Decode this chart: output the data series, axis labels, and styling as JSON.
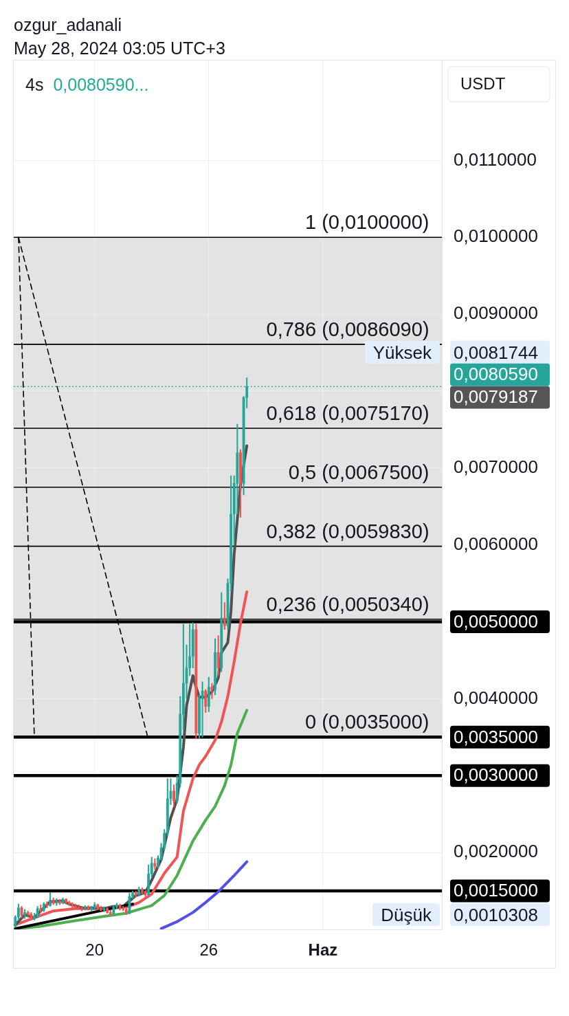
{
  "chart_data": {
    "type": "candlestick",
    "title": "4s",
    "subtitle": "0,0080590...",
    "ylabel": "USDT",
    "x": [
      "2024-05-15T20:00",
      "2024-05-16T00:00",
      "2024-05-16T04:00",
      "2024-05-16T08:00",
      "2024-05-16T12:00",
      "2024-05-16T16:00",
      "2024-05-16T20:00",
      "2024-05-17T00:00",
      "2024-05-17T04:00",
      "2024-05-17T08:00",
      "2024-05-17T12:00",
      "2024-05-17T16:00",
      "2024-05-17T20:00",
      "2024-05-18T00:00",
      "2024-05-18T04:00",
      "2024-05-18T08:00",
      "2024-05-18T12:00",
      "2024-05-18T16:00",
      "2024-05-18T20:00",
      "2024-05-19T00:00",
      "2024-05-19T04:00",
      "2024-05-19T08:00",
      "2024-05-19T12:00",
      "2024-05-19T16:00",
      "2024-05-19T20:00",
      "2024-05-20T00:00",
      "2024-05-20T04:00",
      "2024-05-20T08:00",
      "2024-05-20T12:00",
      "2024-05-20T16:00",
      "2024-05-20T20:00",
      "2024-05-21T00:00",
      "2024-05-21T04:00",
      "2024-05-21T08:00",
      "2024-05-21T12:00",
      "2024-05-21T16:00",
      "2024-05-21T20:00",
      "2024-05-22T00:00",
      "2024-05-22T04:00",
      "2024-05-22T08:00",
      "2024-05-22T12:00",
      "2024-05-22T16:00",
      "2024-05-22T20:00",
      "2024-05-23T00:00",
      "2024-05-23T04:00",
      "2024-05-23T08:00",
      "2024-05-23T12:00",
      "2024-05-23T16:00",
      "2024-05-23T20:00",
      "2024-05-24T00:00",
      "2024-05-24T04:00",
      "2024-05-24T08:00",
      "2024-05-24T12:00",
      "2024-05-24T16:00",
      "2024-05-24T20:00",
      "2024-05-25T00:00",
      "2024-05-25T04:00",
      "2024-05-25T08:00",
      "2024-05-25T12:00",
      "2024-05-25T16:00",
      "2024-05-25T20:00",
      "2024-05-26T00:00",
      "2024-05-26T04:00",
      "2024-05-26T08:00",
      "2024-05-26T12:00",
      "2024-05-26T16:00",
      "2024-05-26T20:00",
      "2024-05-27T00:00",
      "2024-05-27T04:00",
      "2024-05-27T08:00",
      "2024-05-27T12:00",
      "2024-05-27T16:00",
      "2024-05-27T20:00",
      "2024-05-28T00:00"
    ],
    "ohlc": [
      [
        0.00104,
        0.00118,
        0.0010308,
        0.00116
      ],
      [
        0.00116,
        0.00133,
        0.00112,
        0.00128
      ],
      [
        0.00128,
        0.0013,
        0.00115,
        0.00118
      ],
      [
        0.00118,
        0.00126,
        0.00114,
        0.00122
      ],
      [
        0.00122,
        0.00124,
        0.00116,
        0.0012
      ],
      [
        0.0012,
        0.00122,
        0.00112,
        0.00114
      ],
      [
        0.00114,
        0.00121,
        0.00112,
        0.00117
      ],
      [
        0.00117,
        0.0013,
        0.00115,
        0.00127
      ],
      [
        0.00127,
        0.00132,
        0.00122,
        0.00125
      ],
      [
        0.00125,
        0.00135,
        0.00123,
        0.00133
      ],
      [
        0.00133,
        0.00136,
        0.00128,
        0.00131
      ],
      [
        0.00131,
        0.00148,
        0.0013,
        0.00138
      ],
      [
        0.00138,
        0.00141,
        0.00132,
        0.00134
      ],
      [
        0.00134,
        0.0014,
        0.00131,
        0.00137
      ],
      [
        0.00137,
        0.00139,
        0.00132,
        0.00134
      ],
      [
        0.00134,
        0.00141,
        0.00133,
        0.00139
      ],
      [
        0.00139,
        0.0014,
        0.00133,
        0.00135
      ],
      [
        0.00135,
        0.00137,
        0.00131,
        0.00133
      ],
      [
        0.00133,
        0.00135,
        0.00128,
        0.0013
      ],
      [
        0.0013,
        0.00133,
        0.00127,
        0.00129
      ],
      [
        0.00129,
        0.00132,
        0.00126,
        0.00128
      ],
      [
        0.00128,
        0.0013,
        0.00124,
        0.00127
      ],
      [
        0.00127,
        0.00131,
        0.00125,
        0.00129
      ],
      [
        0.00129,
        0.00131,
        0.00125,
        0.00126
      ],
      [
        0.00126,
        0.0013,
        0.00124,
        0.00128
      ],
      [
        0.00128,
        0.00135,
        0.00126,
        0.00132
      ],
      [
        0.00132,
        0.00133,
        0.00126,
        0.00127
      ],
      [
        0.00127,
        0.0013,
        0.00124,
        0.00125
      ],
      [
        0.00125,
        0.00129,
        0.00123,
        0.00127
      ],
      [
        0.00127,
        0.00128,
        0.00121,
        0.00122
      ],
      [
        0.00122,
        0.00125,
        0.00118,
        0.0012
      ],
      [
        0.0012,
        0.00131,
        0.00119,
        0.00129
      ],
      [
        0.00129,
        0.00134,
        0.00127,
        0.00131
      ],
      [
        0.00131,
        0.00133,
        0.00125,
        0.00127
      ],
      [
        0.00127,
        0.0013,
        0.00124,
        0.00126
      ],
      [
        0.00126,
        0.00128,
        0.00119,
        0.00121
      ],
      [
        0.00121,
        0.00147,
        0.0012,
        0.00143
      ],
      [
        0.00143,
        0.0015,
        0.0014,
        0.00147
      ],
      [
        0.00147,
        0.0015,
        0.00142,
        0.00145
      ],
      [
        0.00145,
        0.00155,
        0.00143,
        0.00152
      ],
      [
        0.00152,
        0.00154,
        0.00146,
        0.00149
      ],
      [
        0.00149,
        0.0015,
        0.00143,
        0.00145
      ],
      [
        0.00145,
        0.00184,
        0.00144,
        0.00172
      ],
      [
        0.00172,
        0.00194,
        0.00168,
        0.00186
      ],
      [
        0.00186,
        0.00192,
        0.00178,
        0.00182
      ],
      [
        0.00182,
        0.00196,
        0.0018,
        0.00193
      ],
      [
        0.00193,
        0.00212,
        0.0019,
        0.00206
      ],
      [
        0.00206,
        0.0023,
        0.00203,
        0.00225
      ],
      [
        0.00225,
        0.00296,
        0.00222,
        0.0027
      ],
      [
        0.0027,
        0.00296,
        0.00262,
        0.0028
      ],
      [
        0.0028,
        0.00288,
        0.0026,
        0.00267
      ],
      [
        0.00267,
        0.003,
        0.00264,
        0.0029
      ],
      [
        0.0029,
        0.00403,
        0.00285,
        0.0038
      ],
      [
        0.0038,
        0.00497,
        0.0036,
        0.0042
      ],
      [
        0.0042,
        0.0047,
        0.004,
        0.0044
      ],
      [
        0.0044,
        0.00497,
        0.0043,
        0.00455
      ],
      [
        0.00455,
        0.00499,
        0.0044,
        0.0049
      ],
      [
        0.0049,
        0.00497,
        0.00348,
        0.00355
      ],
      [
        0.00355,
        0.00405,
        0.00348,
        0.004
      ],
      [
        0.004,
        0.00422,
        0.0035,
        0.0041
      ],
      [
        0.0041,
        0.00412,
        0.00382,
        0.0039
      ],
      [
        0.0039,
        0.00428,
        0.00383,
        0.00415
      ],
      [
        0.00415,
        0.0042,
        0.004,
        0.00412
      ],
      [
        0.00412,
        0.00478,
        0.00405,
        0.0046
      ],
      [
        0.0046,
        0.00482,
        0.0043,
        0.0044
      ],
      [
        0.0044,
        0.00538,
        0.00435,
        0.00505
      ],
      [
        0.00505,
        0.00525,
        0.0049,
        0.00495
      ],
      [
        0.00495,
        0.00556,
        0.0049,
        0.0055
      ],
      [
        0.0055,
        0.0069,
        0.0054,
        0.0064
      ],
      [
        0.0064,
        0.0069,
        0.006,
        0.0068
      ],
      [
        0.0068,
        0.00757,
        0.0064,
        0.0072
      ],
      [
        0.0072,
        0.00724,
        0.00636,
        0.0068
      ],
      [
        0.0068,
        0.00793,
        0.00665,
        0.0079187
      ],
      [
        0.0079187,
        0.0081744,
        0.00778,
        0.008059
      ]
    ],
    "colors": [
      "#26a69a",
      "#26a69a",
      "#ef5350",
      "#26a69a",
      "#ef5350",
      "#ef5350",
      "#26a69a",
      "#26a69a",
      "#ef5350",
      "#26a69a",
      "#ef5350",
      "#26a69a",
      "#ef5350",
      "#26a69a",
      "#ef5350",
      "#26a69a",
      "#ef5350",
      "#ef5350",
      "#ef5350",
      "#ef5350",
      "#ef5350",
      "#ef5350",
      "#26a69a",
      "#ef5350",
      "#26a69a",
      "#26a69a",
      "#ef5350",
      "#ef5350",
      "#26a69a",
      "#ef5350",
      "#ef5350",
      "#26a69a",
      "#26a69a",
      "#ef5350",
      "#ef5350",
      "#ef5350",
      "#26a69a",
      "#26a69a",
      "#ef5350",
      "#26a69a",
      "#ef5350",
      "#ef5350",
      "#26a69a",
      "#26a69a",
      "#ef5350",
      "#26a69a",
      "#26a69a",
      "#26a69a",
      "#26a69a",
      "#26a69a",
      "#ef5350",
      "#26a69a",
      "#26a69a",
      "#26a69a",
      "#26a69a",
      "#26a69a",
      "#26a69a",
      "#ef5350",
      "#26a69a",
      "#26a69a",
      "#ef5350",
      "#26a69a",
      "#ef5350",
      "#26a69a",
      "#ef5350",
      "#26a69a",
      "#ef5350",
      "#26a69a",
      "#26a69a",
      "#26a69a",
      "#26a69a",
      "#ef5350",
      "#26a69a",
      "#26a69a"
    ],
    "series": [
      {
        "type": "line",
        "color": "#5050ee",
        "x": [
          "2024-05-23T12:00",
          "2024-05-24T08:00",
          "2024-05-25T04:00",
          "2024-05-25T20:00",
          "2024-05-26T12:00",
          "2024-05-27T08:00",
          "2024-05-28T00:00"
        ],
        "values": [
          0.00101,
          0.0011,
          0.00122,
          0.00135,
          0.00149,
          0.0017,
          0.00188
        ]
      },
      {
        "type": "line",
        "color": "#4caf50",
        "x": [
          "2024-05-16T00:00",
          "2024-05-17T04:00",
          "2024-05-18T16:00",
          "2024-05-20T12:00",
          "2024-05-21T16:00",
          "2024-05-22T08:00",
          "2024-05-23T00:00",
          "2024-05-23T16:00",
          "2024-05-24T08:00",
          "2024-05-25T04:00",
          "2024-05-25T20:00",
          "2024-05-26T08:00",
          "2024-05-26T20:00",
          "2024-05-27T04:00",
          "2024-05-27T12:00",
          "2024-05-28T00:00"
        ],
        "values": [
          0.00101,
          0.00104,
          0.0011,
          0.00117,
          0.00121,
          0.00126,
          0.00131,
          0.00144,
          0.0017,
          0.00215,
          0.00242,
          0.0026,
          0.00287,
          0.00314,
          0.00355,
          0.00385
        ]
      },
      {
        "type": "line",
        "color": "#f05454",
        "x": [
          "2024-05-15T20:00",
          "2024-05-16T20:00",
          "2024-05-17T20:00",
          "2024-05-19T00:00",
          "2024-05-20T00:00",
          "2024-05-21T04:00",
          "2024-05-21T20:00",
          "2024-05-22T08:00",
          "2024-05-23T00:00",
          "2024-05-23T16:00",
          "2024-05-24T08:00",
          "2024-05-24T16:00",
          "2024-05-25T04:00",
          "2024-05-25T12:00",
          "2024-05-25T20:00",
          "2024-05-26T08:00",
          "2024-05-26T16:00",
          "2024-05-27T00:00",
          "2024-05-27T08:00",
          "2024-05-27T16:00",
          "2024-05-28T00:00"
        ],
        "values": [
          0.00106,
          0.00115,
          0.00124,
          0.00127,
          0.00127,
          0.00128,
          0.0013,
          0.00135,
          0.00146,
          0.00173,
          0.00194,
          0.00254,
          0.00296,
          0.00314,
          0.00325,
          0.00346,
          0.0037,
          0.00403,
          0.00448,
          0.00498,
          0.00539
        ]
      },
      {
        "type": "line",
        "color": "#505050",
        "x": [
          "2024-05-15T20:00",
          "2024-05-16T08:00",
          "2024-05-16T20:00",
          "2024-05-17T04:00",
          "2024-05-17T16:00",
          "2024-05-18T08:00",
          "2024-05-18T16:00",
          "2024-05-19T08:00",
          "2024-05-19T20:00",
          "2024-05-20T12:00",
          "2024-05-21T00:00",
          "2024-05-21T12:00",
          "2024-05-21T20:00",
          "2024-05-22T04:00",
          "2024-05-22T16:00",
          "2024-05-23T00:00",
          "2024-05-23T12:00",
          "2024-05-24T00:00",
          "2024-05-24T08:00",
          "2024-05-24T16:00",
          "2024-05-24T20:00",
          "2024-05-25T04:00",
          "2024-05-25T08:00",
          "2024-05-25T12:00",
          "2024-05-25T20:00",
          "2024-05-26T04:00",
          "2024-05-26T12:00",
          "2024-05-26T16:00",
          "2024-05-27T00:00",
          "2024-05-27T04:00",
          "2024-05-27T08:00",
          "2024-05-27T12:00",
          "2024-05-27T16:00",
          "2024-05-28T00:00"
        ],
        "values": [
          0.00106,
          0.00119,
          0.00115,
          0.00124,
          0.00136,
          0.00137,
          0.00133,
          0.00128,
          0.00128,
          0.00127,
          0.0013,
          0.0013,
          0.00137,
          0.00144,
          0.00148,
          0.00164,
          0.00191,
          0.00245,
          0.00269,
          0.00337,
          0.00391,
          0.0043,
          0.00415,
          0.00402,
          0.00402,
          0.00409,
          0.00427,
          0.0046,
          0.00473,
          0.00514,
          0.00588,
          0.00633,
          0.00678,
          0.00729
        ]
      },
      {
        "type": "line",
        "color": "#000000",
        "x": [
          "2024-05-15T20:00",
          "2024-05-22T00:00"
        ],
        "values": [
          0.00101,
          0.00133
        ]
      },
      {
        "type": "line",
        "color": "#000000",
        "line_style": "dashed",
        "x": [
          "2024-05-16T00:00",
          "2024-05-16T20:00"
        ],
        "values": [
          0.01,
          0.0035
        ]
      },
      {
        "type": "line",
        "color": "#000000",
        "line_style": "dashed",
        "x": [
          "2024-05-16T00:00",
          "2024-05-22T19:00"
        ],
        "values": [
          0.01,
          0.0035
        ]
      }
    ],
    "xlim": [
      "2024-05-15T18:00",
      "2024-06-07T06:00"
    ],
    "xticks": [
      {
        "value": "2024-05-20",
        "label": "20"
      },
      {
        "value": "2024-05-26",
        "label": "26"
      },
      {
        "value": "2024-06-01",
        "label": "Haz"
      }
    ],
    "ylim": [
      0.001,
      0.0123
    ],
    "yticks": [
      {
        "value": 0.002,
        "label": "0,0020000"
      },
      {
        "value": 0.004,
        "label": "0,0040000"
      },
      {
        "value": 0.006,
        "label": "0,0060000"
      },
      {
        "value": 0.007,
        "label": "0,0070000"
      },
      {
        "value": 0.008,
        "label": null
      },
      {
        "value": 0.009,
        "label": "0,0090000"
      },
      {
        "value": 0.01,
        "label": "0,0100000"
      },
      {
        "value": 0.011,
        "label": "0,0110000"
      }
    ],
    "grid": true,
    "bands": [
      {
        "axis": "y",
        "from": 0.0035,
        "to": 0.01,
        "color": "#e3e3e3"
      }
    ],
    "ref_lines": [
      {
        "axis": "y",
        "value": 0.01,
        "color": "#000000"
      },
      {
        "axis": "y",
        "value": 0.008609,
        "color": "#000000"
      },
      {
        "axis": "y",
        "value": 0.007517,
        "color": "#000000"
      },
      {
        "axis": "y",
        "value": 0.00675,
        "color": "#000000"
      },
      {
        "axis": "y",
        "value": 0.005983,
        "color": "#000000"
      },
      {
        "axis": "y",
        "value": 0.005034,
        "color": "#000000"
      },
      {
        "axis": "y",
        "value": 0.005,
        "label": "0,0050000",
        "color": "#000000"
      },
      {
        "axis": "y",
        "value": 0.0035,
        "label": "0,0035000",
        "color": "#000000"
      },
      {
        "axis": "y",
        "value": 0.003,
        "label": "0,0030000",
        "color": "#000000"
      },
      {
        "axis": "y",
        "value": 0.0015,
        "label": "0,0015000",
        "color": "#000000"
      },
      {
        "axis": "y",
        "value": 0.008059,
        "label": "0,0080590",
        "color": "#26a69a",
        "line_style": "dotted"
      }
    ],
    "annotations": [
      "ozgur_adanali",
      "May 28, 2024 03:05 UTC+3",
      {
        "text": "1 (0,0100000)",
        "x": "2024-06-06T14:00",
        "y": 0.01
      },
      {
        "text": "0,786 (0,0086090)",
        "x": "2024-06-06T14:00",
        "y": 0.008609
      },
      {
        "text": "0,618 (0,0075170)",
        "x": "2024-06-06T14:00",
        "y": 0.007517
      },
      {
        "text": "0,5 (0,0067500)",
        "x": "2024-06-06T14:00",
        "y": 0.00675
      },
      {
        "text": "0,382 (0,0059830)",
        "x": "2024-06-06T14:00",
        "y": 0.005983
      },
      {
        "text": "0,236 (0,0050340)",
        "x": "2024-06-06T14:00",
        "y": 0.005034
      },
      {
        "text": "0 (0,0035000)",
        "x": "2024-06-06T14:00",
        "y": 0.0035
      },
      "Yüksek 0,0081744",
      "0,0079187",
      "Düşük 0,0010308"
    ]
  }
}
